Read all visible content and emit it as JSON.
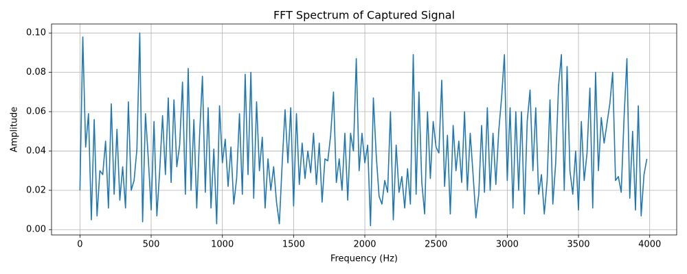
{
  "chart_data": {
    "type": "line",
    "title": "FFT Spectrum of Captured Signal",
    "x_label": "Frequency (Hz)",
    "y_label": "Amplitude",
    "color": "#1f77b4",
    "grid": true,
    "xlim": [
      -199.5,
      4189.5
    ],
    "ylim": [
      -0.0027,
      0.1046
    ],
    "xticks": [
      0,
      500,
      1000,
      1500,
      2000,
      2500,
      3000,
      3500,
      4000
    ],
    "yticks": [
      {
        "value": 0,
        "label": "0.00"
      },
      {
        "value": 0.02,
        "label": "0.02"
      },
      {
        "value": 0.04,
        "label": "0.04"
      },
      {
        "value": 0.06,
        "label": "0.06"
      },
      {
        "value": 0.08,
        "label": "0.08"
      },
      {
        "value": 0.1,
        "label": "0.10"
      }
    ],
    "x": [
      0,
      20,
      40,
      60,
      80,
      100,
      120,
      140,
      160,
      180,
      200,
      220,
      240,
      260,
      280,
      300,
      320,
      340,
      360,
      380,
      400,
      420,
      440,
      460,
      480,
      500,
      520,
      540,
      560,
      580,
      600,
      620,
      640,
      660,
      680,
      700,
      720,
      740,
      760,
      780,
      800,
      820,
      840,
      860,
      880,
      900,
      920,
      940,
      960,
      980,
      1000,
      1020,
      1040,
      1060,
      1080,
      1100,
      1120,
      1140,
      1160,
      1180,
      1200,
      1220,
      1240,
      1260,
      1280,
      1300,
      1320,
      1340,
      1360,
      1380,
      1400,
      1420,
      1440,
      1460,
      1480,
      1500,
      1520,
      1540,
      1560,
      1580,
      1600,
      1620,
      1640,
      1660,
      1680,
      1700,
      1720,
      1740,
      1760,
      1780,
      1800,
      1820,
      1840,
      1860,
      1880,
      1900,
      1920,
      1940,
      1960,
      1980,
      2000,
      2020,
      2040,
      2060,
      2080,
      2100,
      2120,
      2140,
      2160,
      2180,
      2200,
      2220,
      2240,
      2260,
      2280,
      2300,
      2320,
      2340,
      2360,
      2380,
      2400,
      2420,
      2440,
      2460,
      2480,
      2500,
      2520,
      2540,
      2560,
      2580,
      2600,
      2620,
      2640,
      2660,
      2680,
      2700,
      2720,
      2740,
      2760,
      2780,
      2800,
      2820,
      2840,
      2860,
      2880,
      2900,
      2920,
      2940,
      2960,
      2980,
      3000,
      3020,
      3040,
      3060,
      3080,
      3100,
      3120,
      3140,
      3160,
      3180,
      3200,
      3220,
      3240,
      3260,
      3280,
      3300,
      3320,
      3340,
      3360,
      3380,
      3400,
      3420,
      3440,
      3460,
      3480,
      3500,
      3520,
      3540,
      3560,
      3580,
      3600,
      3620,
      3640,
      3660,
      3680,
      3700,
      3720,
      3740,
      3760,
      3780,
      3800,
      3820,
      3840,
      3860,
      3880,
      3900,
      3920,
      3940,
      3960,
      3980
    ],
    "values": [
      0.02,
      0.098,
      0.042,
      0.059,
      0.005,
      0.056,
      0.007,
      0.03,
      0.028,
      0.045,
      0.011,
      0.064,
      0.018,
      0.051,
      0.015,
      0.032,
      0.011,
      0.065,
      0.02,
      0.025,
      0.041,
      0.1,
      0.004,
      0.059,
      0.036,
      0.01,
      0.055,
      0.007,
      0.03,
      0.058,
      0.028,
      0.067,
      0.024,
      0.066,
      0.032,
      0.043,
      0.075,
      0.018,
      0.082,
      0.02,
      0.056,
      0.011,
      0.048,
      0.078,
      0.019,
      0.062,
      0.011,
      0.041,
      0.003,
      0.063,
      0.034,
      0.046,
      0.022,
      0.042,
      0.013,
      0.026,
      0.059,
      0.018,
      0.079,
      0.028,
      0.08,
      0.016,
      0.065,
      0.03,
      0.047,
      0.011,
      0.036,
      0.02,
      0.032,
      0.014,
      0.003,
      0.034,
      0.061,
      0.034,
      0.062,
      0.012,
      0.059,
      0.023,
      0.044,
      0.026,
      0.04,
      0.029,
      0.049,
      0.023,
      0.044,
      0.014,
      0.036,
      0.035,
      0.048,
      0.07,
      0.024,
      0.036,
      0.02,
      0.049,
      0.015,
      0.049,
      0.04,
      0.087,
      0.03,
      0.049,
      0.034,
      0.043,
      0.002,
      0.067,
      0.038,
      0.017,
      0.013,
      0.025,
      0.019,
      0.06,
      0.005,
      0.043,
      0.019,
      0.027,
      0.011,
      0.031,
      0.013,
      0.089,
      0.018,
      0.07,
      0.024,
      0.008,
      0.06,
      0.026,
      0.055,
      0.042,
      0.039,
      0.076,
      0.022,
      0.048,
      0.008,
      0.053,
      0.03,
      0.045,
      0.024,
      0.06,
      0.02,
      0.049,
      0.028,
      0.006,
      0.018,
      0.053,
      0.019,
      0.062,
      0.02,
      0.049,
      0.023,
      0.05,
      0.067,
      0.089,
      0.025,
      0.062,
      0.011,
      0.06,
      0.02,
      0.06,
      0.008,
      0.055,
      0.071,
      0.03,
      0.062,
      0.018,
      0.028,
      0.008,
      0.025,
      0.066,
      0.013,
      0.034,
      0.073,
      0.089,
      0.02,
      0.083,
      0.03,
      0.018,
      0.04,
      0.01,
      0.055,
      0.025,
      0.039,
      0.072,
      0.011,
      0.08,
      0.03,
      0.057,
      0.044,
      0.054,
      0.064,
      0.08,
      0.025,
      0.027,
      0.019,
      0.057,
      0.087,
      0.016,
      0.05,
      0.01,
      0.063,
      0.007,
      0.028,
      0.036
    ]
  }
}
